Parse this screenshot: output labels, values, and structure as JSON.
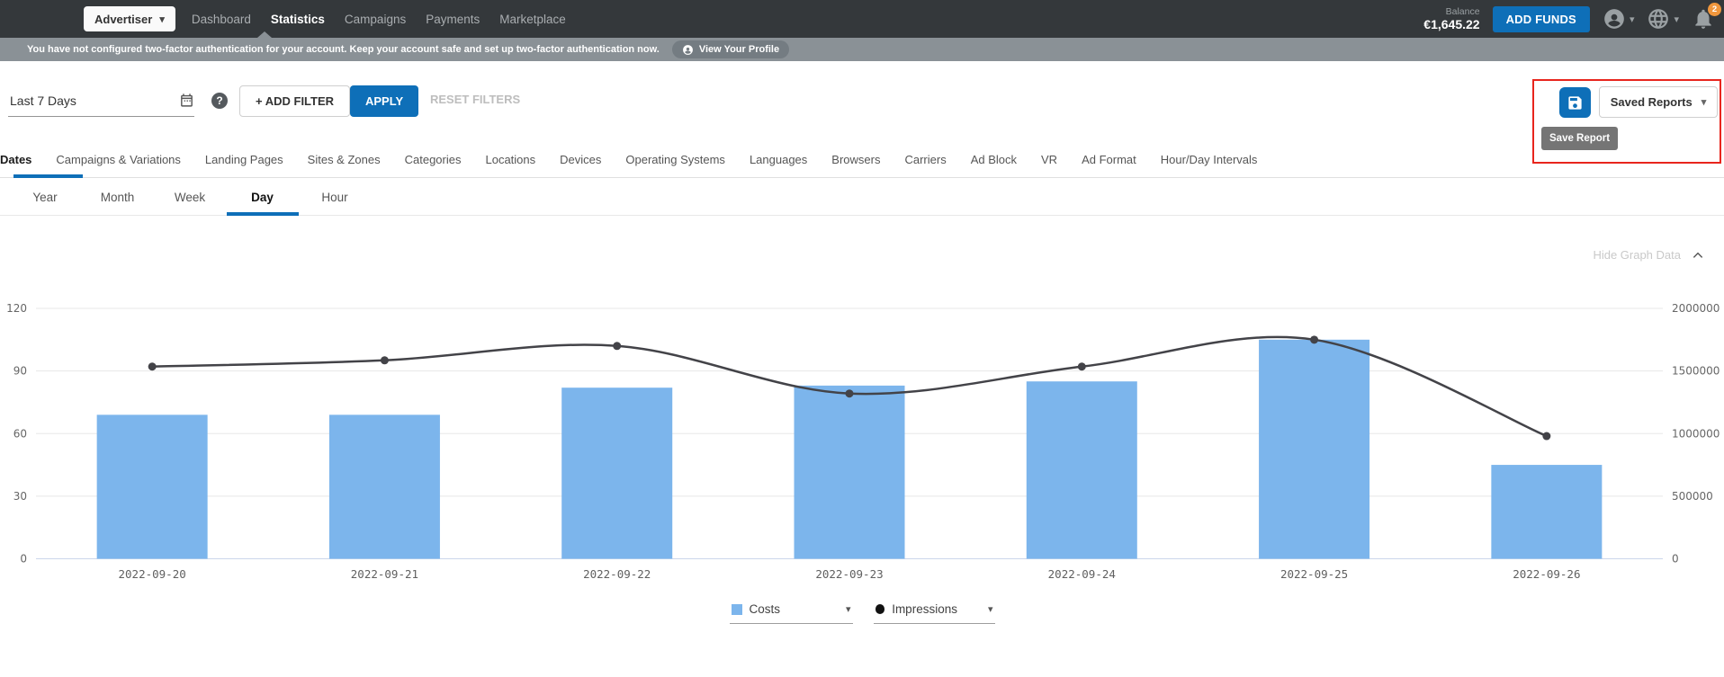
{
  "navbar": {
    "role_selector": {
      "label": "Advertiser"
    },
    "items": [
      {
        "label": "Dashboard",
        "active": false
      },
      {
        "label": "Statistics",
        "active": true
      },
      {
        "label": "Campaigns",
        "active": false
      },
      {
        "label": "Payments",
        "active": false
      },
      {
        "label": "Marketplace",
        "active": false
      }
    ],
    "balance": {
      "label": "Balance",
      "value": "€1,645.22"
    },
    "add_funds_label": "ADD FUNDS",
    "notifications_badge": "2"
  },
  "warning_bar": {
    "message": "You have not configured two-factor authentication for your account. Keep your account safe and set up two-factor authentication now.",
    "profile_button_label": "View Your Profile"
  },
  "filter_bar": {
    "date_range_value": "Last 7 Days",
    "add_filter_label": "+ ADD FILTER",
    "apply_label": "APPLY",
    "reset_label": "RESET FILTERS",
    "saved_reports_label": "Saved Reports",
    "save_report_tooltip": "Save Report"
  },
  "report_tabs": {
    "active": "Dates",
    "items": [
      "Dates",
      "Campaigns & Variations",
      "Landing Pages",
      "Sites & Zones",
      "Categories",
      "Locations",
      "Devices",
      "Operating Systems",
      "Languages",
      "Browsers",
      "Carriers",
      "Ad Block",
      "VR",
      "Ad Format",
      "Hour/Day Intervals"
    ]
  },
  "interval_tabs": {
    "active": "Day",
    "items": [
      "Year",
      "Month",
      "Week",
      "Day",
      "Hour"
    ]
  },
  "graph_toggle_label": "Hide Graph Data",
  "chart_data": {
    "type": "bar",
    "categories": [
      "2022-09-20",
      "2022-09-21",
      "2022-09-22",
      "2022-09-23",
      "2022-09-24",
      "2022-09-25",
      "2022-09-26"
    ],
    "series": [
      {
        "name": "Costs",
        "type": "bar",
        "axis": "left",
        "color": "#7cb5ec",
        "values": [
          69,
          69,
          82,
          83,
          85,
          105,
          45
        ]
      },
      {
        "name": "Impressions",
        "type": "line",
        "axis": "right",
        "color": "#434348",
        "values": [
          1535000,
          1585000,
          1700000,
          1320000,
          1535000,
          1750000,
          980000
        ]
      }
    ],
    "left_axis": {
      "range": [
        0,
        120
      ],
      "ticks": [
        0,
        30,
        60,
        90,
        120
      ],
      "labels": [
        "0",
        "30",
        "60",
        "90",
        "120"
      ]
    },
    "right_axis": {
      "range": [
        0,
        2000000
      ],
      "ticks": [
        0,
        500000,
        1000000,
        1500000,
        2000000
      ],
      "labels": [
        "0",
        "500000",
        "1000000",
        "1500000",
        "2000000"
      ]
    },
    "grid": true,
    "legend_position": "bottom"
  },
  "colors": {
    "primary_blue": "#0e6fb8",
    "bar_blue": "#7cb5ec",
    "line_dark": "#434348",
    "highlight_red": "#e8251d",
    "badge_orange": "#f0973d",
    "navbar_bg": "#34383b",
    "warning_bg": "#8a9196"
  }
}
